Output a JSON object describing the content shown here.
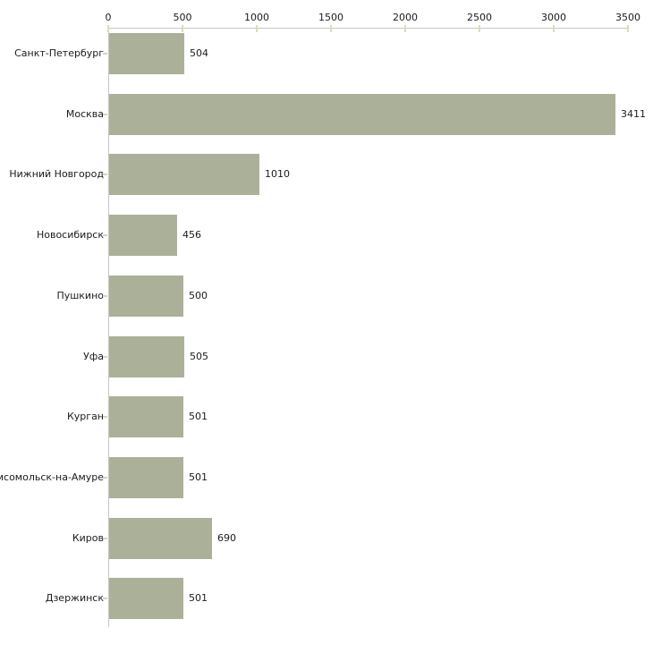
{
  "chart_data": {
    "type": "bar",
    "orientation": "horizontal",
    "title": "",
    "xlabel": "",
    "ylabel": "",
    "categories": [
      "Санкт-Петербург",
      "Москва",
      "Нижний Новгород",
      "Новосибирск",
      "Пушкино",
      "Уфа",
      "Курган",
      "мсомольск-на-Амуре",
      "Киров",
      "Дзержинск"
    ],
    "values": [
      504,
      3411,
      1010,
      456,
      500,
      505,
      501,
      501,
      690,
      501
    ],
    "value_labels": [
      "504",
      "3411",
      "1010",
      "456",
      "500",
      "505",
      "501",
      "501",
      "690",
      "501"
    ],
    "x_ticks": [
      "0",
      "500",
      "1000",
      "1500",
      "2000",
      "2500",
      "3000",
      "3500"
    ],
    "xlim": [
      0,
      3500
    ],
    "grid": false,
    "legend": false,
    "axis_position": "top",
    "colors": {
      "bar_fill": "#abb199",
      "axis_line": "#c6c6c6",
      "axis_tick": "#d9dcc0",
      "category_tick": "#d8d3bd",
      "text": "#1a1a1a",
      "background": "#ffffff"
    }
  }
}
